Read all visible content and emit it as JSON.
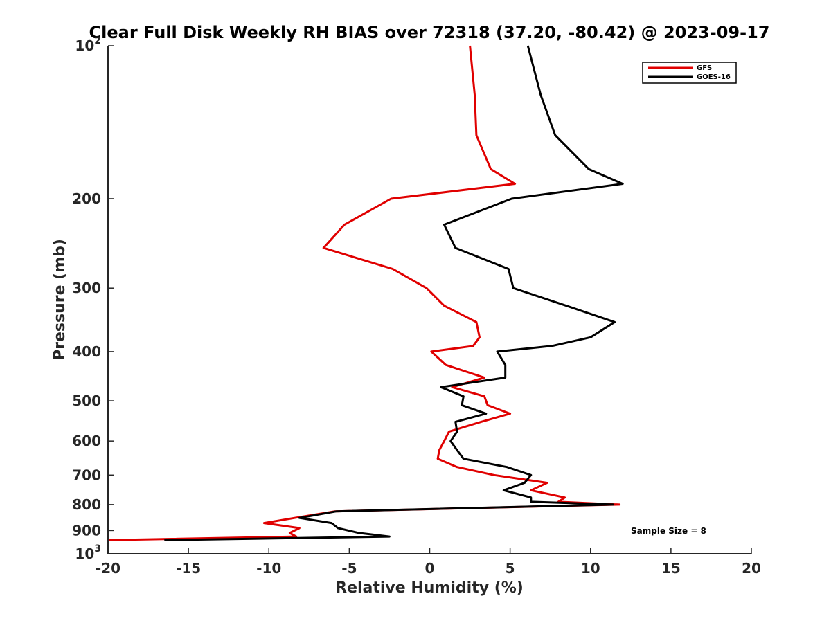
{
  "chart_data": {
    "type": "line",
    "title": "Clear Full Disk Weekly RH BIAS over 72318 (37.20, -80.42) @ 2023-09-17",
    "xlabel": "Relative Humidity (%)",
    "ylabel": "Pressure (mb)",
    "xlim": [
      -20,
      20
    ],
    "ylim": [
      100,
      1000
    ],
    "yscale": "log",
    "y_inverted": true,
    "x_ticks": [
      "-20",
      "-15",
      "-10",
      "-5",
      "0",
      "5",
      "10",
      "15",
      "20"
    ],
    "y_ticks": [
      {
        "value": 100,
        "base": "10",
        "exp": "2"
      },
      {
        "value": 200,
        "label": "200"
      },
      {
        "value": 300,
        "label": "300"
      },
      {
        "value": 400,
        "label": "400"
      },
      {
        "value": 500,
        "label": "500"
      },
      {
        "value": 600,
        "label": "600"
      },
      {
        "value": 700,
        "label": "700"
      },
      {
        "value": 800,
        "label": "800"
      },
      {
        "value": 900,
        "label": "900"
      },
      {
        "value": 1000,
        "base": "10",
        "exp": "3"
      }
    ],
    "legend_position": "top-right",
    "grid": false,
    "annotation": "Sample Size = 8",
    "series": [
      {
        "name": "GFS",
        "color": "#e00000",
        "points": [
          [
            2.5,
            100
          ],
          [
            2.8,
            125
          ],
          [
            2.9,
            150
          ],
          [
            3.8,
            175
          ],
          [
            5.3,
            187
          ],
          [
            -2.4,
            200
          ],
          [
            -5.3,
            225
          ],
          [
            -6.6,
            250
          ],
          [
            -2.3,
            275
          ],
          [
            -0.2,
            300
          ],
          [
            0.9,
            325
          ],
          [
            2.9,
            350
          ],
          [
            3.1,
            375
          ],
          [
            2.7,
            390
          ],
          [
            0.1,
            400
          ],
          [
            1.0,
            425
          ],
          [
            3.4,
            450
          ],
          [
            1.4,
            470
          ],
          [
            3.4,
            490
          ],
          [
            3.6,
            510
          ],
          [
            5.0,
            530
          ],
          [
            3.2,
            550
          ],
          [
            1.2,
            575
          ],
          [
            0.9,
            600
          ],
          [
            0.6,
            625
          ],
          [
            0.5,
            650
          ],
          [
            1.7,
            675
          ],
          [
            4.0,
            700
          ],
          [
            7.3,
            725
          ],
          [
            6.3,
            750
          ],
          [
            8.4,
            775
          ],
          [
            8.0,
            790
          ],
          [
            11.8,
            800
          ],
          [
            -5.9,
            825
          ],
          [
            -8.4,
            850
          ],
          [
            -10.3,
            870
          ],
          [
            -8.1,
            890
          ],
          [
            -8.7,
            910
          ],
          [
            -8.3,
            925
          ],
          [
            -20.0,
            940
          ]
        ]
      },
      {
        "name": "GOES-16",
        "color": "#000000",
        "points": [
          [
            6.1,
            100
          ],
          [
            6.9,
            125
          ],
          [
            7.8,
            150
          ],
          [
            9.9,
            175
          ],
          [
            12.0,
            187
          ],
          [
            5.1,
            200
          ],
          [
            0.9,
            225
          ],
          [
            1.6,
            250
          ],
          [
            4.9,
            275
          ],
          [
            5.2,
            300
          ],
          [
            8.5,
            325
          ],
          [
            11.5,
            350
          ],
          [
            10.0,
            375
          ],
          [
            7.6,
            390
          ],
          [
            4.2,
            400
          ],
          [
            4.7,
            425
          ],
          [
            4.7,
            450
          ],
          [
            0.7,
            470
          ],
          [
            2.1,
            490
          ],
          [
            2.0,
            510
          ],
          [
            3.5,
            530
          ],
          [
            1.6,
            550
          ],
          [
            1.7,
            575
          ],
          [
            1.3,
            600
          ],
          [
            1.7,
            625
          ],
          [
            2.1,
            650
          ],
          [
            4.8,
            675
          ],
          [
            6.3,
            700
          ],
          [
            5.9,
            725
          ],
          [
            4.6,
            750
          ],
          [
            6.3,
            775
          ],
          [
            6.3,
            790
          ],
          [
            11.4,
            800
          ],
          [
            -5.8,
            825
          ],
          [
            -8.1,
            850
          ],
          [
            -6.1,
            870
          ],
          [
            -5.7,
            890
          ],
          [
            -4.4,
            910
          ],
          [
            -2.5,
            925
          ],
          [
            -16.5,
            940
          ]
        ]
      }
    ]
  }
}
